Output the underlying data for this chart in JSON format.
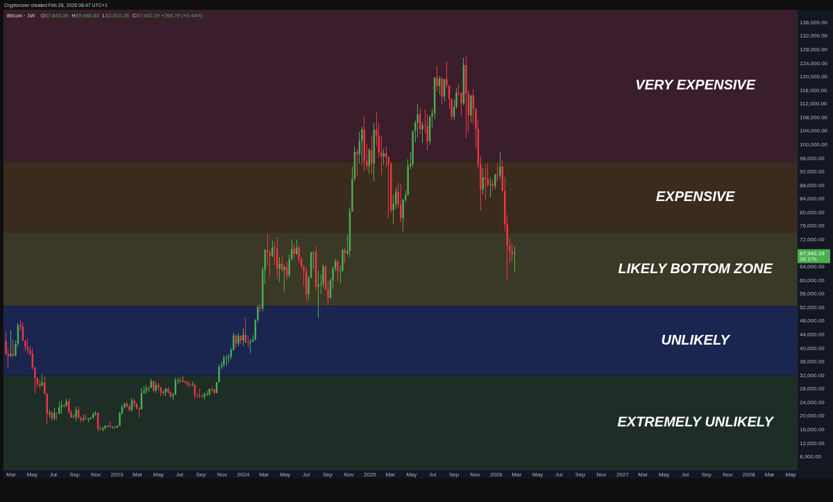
{
  "chart_data": {
    "type": "candlestick",
    "title": "Bitcoin · 1W",
    "subtitle": "O67,643.39 H69,988.83 L62,510.28 C67,942.19 +298.79 (+0.44%)",
    "annotations": [
      "Cryptorover created Feb 26, 2026 08:47 UTC+1",
      "67,942.19",
      "3d 17h"
    ],
    "x": [
      "2022-02-14",
      "2022-02-21",
      "2022-02-28",
      "2022-03-07",
      "2022-03-14",
      "2022-03-21",
      "2022-03-28",
      "2022-04-04",
      "2022-04-11",
      "2022-04-18",
      "2022-04-25",
      "2022-05-02",
      "2022-05-09",
      "2022-05-16",
      "2022-05-23",
      "2022-05-30",
      "2022-06-06",
      "2022-06-13",
      "2022-06-20",
      "2022-06-27",
      "2022-07-04",
      "2022-07-11",
      "2022-07-18",
      "2022-07-25",
      "2022-08-01",
      "2022-08-08",
      "2022-08-15",
      "2022-08-22",
      "2022-08-29",
      "2022-09-05",
      "2022-09-12",
      "2022-09-19",
      "2022-09-26",
      "2022-10-03",
      "2022-10-10",
      "2022-10-17",
      "2022-10-24",
      "2022-10-31",
      "2022-11-07",
      "2022-11-14",
      "2022-11-21",
      "2022-11-28",
      "2022-12-05",
      "2022-12-12",
      "2022-12-19",
      "2022-12-26",
      "2023-01-02",
      "2023-01-09",
      "2023-01-16",
      "2023-01-23",
      "2023-01-30",
      "2023-02-06",
      "2023-02-13",
      "2023-02-20",
      "2023-02-27",
      "2023-03-06",
      "2023-03-13",
      "2023-03-20",
      "2023-03-27",
      "2023-04-03",
      "2023-04-10",
      "2023-04-17",
      "2023-04-24",
      "2023-05-01",
      "2023-05-08",
      "2023-05-15",
      "2023-05-22",
      "2023-05-29",
      "2023-06-05",
      "2023-06-12",
      "2023-06-19",
      "2023-06-26",
      "2023-07-03",
      "2023-07-10",
      "2023-07-17",
      "2023-07-24",
      "2023-07-31",
      "2023-08-07",
      "2023-08-14",
      "2023-08-21",
      "2023-08-28",
      "2023-09-04",
      "2023-09-11",
      "2023-09-18",
      "2023-09-25",
      "2023-10-02",
      "2023-10-09",
      "2023-10-16",
      "2023-10-23",
      "2023-10-30",
      "2023-11-06",
      "2023-11-13",
      "2023-11-20",
      "2023-11-27",
      "2023-12-04",
      "2023-12-11",
      "2023-12-18",
      "2023-12-25",
      "2024-01-01",
      "2024-01-08",
      "2024-01-15",
      "2024-01-22",
      "2024-01-29",
      "2024-02-05",
      "2024-02-12",
      "2024-02-19",
      "2024-02-26",
      "2024-03-04",
      "2024-03-11",
      "2024-03-18",
      "2024-03-25",
      "2024-04-01",
      "2024-04-08",
      "2024-04-15",
      "2024-04-22",
      "2024-04-29",
      "2024-05-06",
      "2024-05-13",
      "2024-05-20",
      "2024-05-27",
      "2024-06-03",
      "2024-06-10",
      "2024-06-17",
      "2024-06-24",
      "2024-07-01",
      "2024-07-08",
      "2024-07-15",
      "2024-07-22",
      "2024-07-29",
      "2024-08-05",
      "2024-08-12",
      "2024-08-19",
      "2024-08-26",
      "2024-09-02",
      "2024-09-09",
      "2024-09-16",
      "2024-09-23",
      "2024-09-30",
      "2024-10-07",
      "2024-10-14",
      "2024-10-21",
      "2024-10-28",
      "2024-11-04",
      "2024-11-11",
      "2024-11-18",
      "2024-11-25",
      "2024-12-02",
      "2024-12-09",
      "2024-12-16",
      "2024-12-23",
      "2024-12-30",
      "2025-01-06",
      "2025-01-13",
      "2025-01-20",
      "2025-01-27",
      "2025-02-03",
      "2025-02-10",
      "2025-02-17",
      "2025-02-24",
      "2025-03-03",
      "2025-03-10",
      "2025-03-17",
      "2025-03-24",
      "2025-03-31",
      "2025-04-07",
      "2025-04-14",
      "2025-04-21",
      "2025-04-28",
      "2025-05-05",
      "2025-05-12",
      "2025-05-19",
      "2025-05-26",
      "2025-06-02",
      "2025-06-09",
      "2025-06-16",
      "2025-06-23",
      "2025-06-30",
      "2025-07-07",
      "2025-07-14",
      "2025-07-21",
      "2025-07-28",
      "2025-08-04",
      "2025-08-11",
      "2025-08-18",
      "2025-08-25",
      "2025-09-01",
      "2025-09-08",
      "2025-09-15",
      "2025-09-22",
      "2025-09-29",
      "2025-10-06",
      "2025-10-13",
      "2025-10-20",
      "2025-10-27",
      "2025-11-03",
      "2025-11-10",
      "2025-11-17",
      "2025-11-24",
      "2025-12-01",
      "2025-12-08",
      "2025-12-15",
      "2025-12-22",
      "2025-12-29",
      "2026-01-05",
      "2026-01-12",
      "2026-01-19",
      "2026-01-26",
      "2026-02-02",
      "2026-02-09",
      "2026-02-16",
      "2026-02-23"
    ],
    "ohlc": [
      [
        42100,
        44800,
        38000,
        38400
      ],
      [
        38400,
        39900,
        34300,
        37700
      ],
      [
        37700,
        45400,
        37500,
        38400
      ],
      [
        38400,
        42600,
        37200,
        37800
      ],
      [
        37800,
        42300,
        37600,
        41300
      ],
      [
        41300,
        47500,
        40500,
        46800
      ],
      [
        46800,
        48200,
        45200,
        46400
      ],
      [
        46400,
        47500,
        42100,
        42200
      ],
      [
        42200,
        42400,
        39200,
        40400
      ],
      [
        40400,
        43000,
        38500,
        39500
      ],
      [
        39500,
        40800,
        37700,
        38500
      ],
      [
        38500,
        40000,
        33700,
        34300
      ],
      [
        34300,
        34500,
        26700,
        31300
      ],
      [
        31300,
        31400,
        28600,
        29500
      ],
      [
        29500,
        30600,
        28000,
        29000
      ],
      [
        29000,
        32400,
        28900,
        29900
      ],
      [
        29900,
        31700,
        26500,
        26600
      ],
      [
        26600,
        26900,
        17600,
        20600
      ],
      [
        20600,
        21900,
        19600,
        21000
      ],
      [
        21000,
        21500,
        18600,
        19300
      ],
      [
        19300,
        22500,
        18800,
        20900
      ],
      [
        20900,
        21000,
        18900,
        20800
      ],
      [
        20800,
        24300,
        20700,
        22600
      ],
      [
        22600,
        24700,
        20700,
        23300
      ],
      [
        23300,
        23700,
        22400,
        23200
      ],
      [
        23200,
        25200,
        22700,
        24400
      ],
      [
        24400,
        25200,
        20800,
        21100
      ],
      [
        21100,
        22000,
        19500,
        19600
      ],
      [
        19600,
        20600,
        19500,
        19800
      ],
      [
        19800,
        22800,
        18500,
        21800
      ],
      [
        21800,
        22700,
        19300,
        19400
      ],
      [
        19400,
        20000,
        18100,
        18800
      ],
      [
        18800,
        20400,
        18500,
        19300
      ],
      [
        19300,
        20500,
        19000,
        19100
      ],
      [
        19100,
        19500,
        18200,
        19200
      ],
      [
        19200,
        19700,
        18900,
        19600
      ],
      [
        19600,
        21100,
        19200,
        20600
      ],
      [
        20600,
        21500,
        20100,
        20900
      ],
      [
        20900,
        21100,
        15600,
        16300
      ],
      [
        16300,
        17200,
        15800,
        16200
      ],
      [
        16200,
        16800,
        15500,
        16500
      ],
      [
        16500,
        17400,
        16000,
        17100
      ],
      [
        17100,
        17400,
        16700,
        17100
      ],
      [
        17100,
        18400,
        16500,
        16800
      ],
      [
        16800,
        17000,
        16300,
        16800
      ],
      [
        16800,
        17000,
        16300,
        16600
      ],
      [
        16600,
        17400,
        16500,
        17100
      ],
      [
        17100,
        21300,
        17100,
        20900
      ],
      [
        20900,
        23400,
        20400,
        22700
      ],
      [
        22700,
        23800,
        22300,
        23700
      ],
      [
        23700,
        24300,
        22500,
        22900
      ],
      [
        22900,
        23500,
        21400,
        21800
      ],
      [
        21800,
        25300,
        21400,
        24600
      ],
      [
        24600,
        25100,
        22700,
        23600
      ],
      [
        23600,
        23900,
        22000,
        22400
      ],
      [
        22400,
        22600,
        19600,
        22100
      ],
      [
        22100,
        28400,
        21900,
        26900
      ],
      [
        26900,
        28900,
        26600,
        27500
      ],
      [
        27500,
        29200,
        26500,
        28200
      ],
      [
        28200,
        28800,
        27200,
        28300
      ],
      [
        28300,
        31000,
        28300,
        30300
      ],
      [
        30300,
        30600,
        27100,
        27600
      ],
      [
        27600,
        30000,
        26900,
        29200
      ],
      [
        29200,
        29800,
        27700,
        28400
      ],
      [
        28400,
        28700,
        25800,
        26900
      ],
      [
        26900,
        27700,
        26100,
        27100
      ],
      [
        27100,
        28300,
        25900,
        28100
      ],
      [
        28100,
        28500,
        26600,
        27100
      ],
      [
        27100,
        27400,
        25400,
        25800
      ],
      [
        25800,
        26800,
        24800,
        26300
      ],
      [
        26300,
        31400,
        26300,
        30500
      ],
      [
        30500,
        31300,
        29500,
        30600
      ],
      [
        30600,
        31500,
        29700,
        30200
      ],
      [
        30200,
        31800,
        30000,
        30300
      ],
      [
        30300,
        30500,
        29500,
        30100
      ],
      [
        30100,
        30300,
        28900,
        29200
      ],
      [
        29200,
        30000,
        28600,
        29100
      ],
      [
        29100,
        30200,
        28700,
        29300
      ],
      [
        29300,
        29700,
        25200,
        26100
      ],
      [
        26100,
        26800,
        25400,
        26000
      ],
      [
        26000,
        28100,
        25300,
        25900
      ],
      [
        25900,
        26400,
        25400,
        25800
      ],
      [
        25800,
        27000,
        24900,
        26500
      ],
      [
        26500,
        27500,
        26000,
        26500
      ],
      [
        26500,
        28000,
        26000,
        28000
      ],
      [
        28000,
        28600,
        27200,
        27900
      ],
      [
        27900,
        28000,
        26500,
        26900
      ],
      [
        26900,
        30000,
        26800,
        30000
      ],
      [
        30000,
        35300,
        29900,
        34500
      ],
      [
        34500,
        36000,
        33900,
        35000
      ],
      [
        35000,
        38000,
        34500,
        37100
      ],
      [
        37100,
        38000,
        34800,
        37400
      ],
      [
        37400,
        38400,
        35600,
        37500
      ],
      [
        37500,
        40300,
        36700,
        39500
      ],
      [
        39500,
        44700,
        39300,
        43800
      ],
      [
        43800,
        44100,
        40200,
        41400
      ],
      [
        41400,
        44400,
        40600,
        43700
      ],
      [
        43700,
        43800,
        41300,
        42300
      ],
      [
        42300,
        45900,
        40800,
        44000
      ],
      [
        44000,
        49100,
        41500,
        41700
      ],
      [
        41700,
        43600,
        40300,
        41600
      ],
      [
        41600,
        42800,
        38600,
        42000
      ],
      [
        42000,
        43900,
        41800,
        42600
      ],
      [
        42600,
        48600,
        42300,
        48300
      ],
      [
        48300,
        52800,
        47700,
        52100
      ],
      [
        52100,
        53000,
        50500,
        51700
      ],
      [
        51700,
        64000,
        50900,
        63100
      ],
      [
        63100,
        69200,
        59000,
        69000
      ],
      [
        69000,
        73800,
        64500,
        68400
      ],
      [
        68400,
        68900,
        60800,
        67200
      ],
      [
        67200,
        71800,
        66900,
        69700
      ],
      [
        69700,
        71300,
        64500,
        69400
      ],
      [
        69400,
        72800,
        60700,
        63400
      ],
      [
        63400,
        66900,
        59600,
        64900
      ],
      [
        64900,
        67200,
        62400,
        63100
      ],
      [
        63100,
        64700,
        56600,
        63900
      ],
      [
        63900,
        65500,
        60200,
        61500
      ],
      [
        61500,
        67700,
        60800,
        66300
      ],
      [
        66300,
        72000,
        66000,
        69300
      ],
      [
        69300,
        70600,
        66600,
        67800
      ],
      [
        67800,
        72000,
        67600,
        69700
      ],
      [
        69700,
        70200,
        65100,
        66200
      ],
      [
        66200,
        67000,
        63400,
        64200
      ],
      [
        64200,
        64500,
        58400,
        62700
      ],
      [
        62700,
        63800,
        53500,
        55900
      ],
      [
        55900,
        61400,
        54300,
        60800
      ],
      [
        60800,
        68400,
        60600,
        68200
      ],
      [
        68200,
        68500,
        63500,
        68300
      ],
      [
        68300,
        70100,
        57100,
        58200
      ],
      [
        58200,
        62800,
        49000,
        58700
      ],
      [
        58700,
        61800,
        56100,
        59000
      ],
      [
        59000,
        65000,
        57900,
        64200
      ],
      [
        64200,
        64500,
        57200,
        57300
      ],
      [
        57300,
        59800,
        52600,
        54900
      ],
      [
        54900,
        60700,
        54600,
        60000
      ],
      [
        60000,
        64100,
        57500,
        63600
      ],
      [
        63600,
        66500,
        62700,
        65600
      ],
      [
        65600,
        65700,
        59800,
        62800
      ],
      [
        62800,
        64500,
        59000,
        62900
      ],
      [
        62900,
        69400,
        62500,
        69000
      ],
      [
        69000,
        69500,
        65100,
        68000
      ],
      [
        68000,
        73600,
        67500,
        68700
      ],
      [
        68700,
        81500,
        66800,
        80400
      ],
      [
        80400,
        93500,
        80200,
        89900
      ],
      [
        89900,
        99600,
        89400,
        97900
      ],
      [
        97900,
        98700,
        90800,
        97200
      ],
      [
        97200,
        103900,
        94500,
        101100
      ],
      [
        101100,
        105300,
        94200,
        104500
      ],
      [
        104500,
        108400,
        92100,
        95200
      ],
      [
        95200,
        100000,
        92500,
        93700
      ],
      [
        93700,
        99000,
        91500,
        98400
      ],
      [
        98400,
        102700,
        91200,
        94500
      ],
      [
        94500,
        106400,
        89300,
        104500
      ],
      [
        104500,
        109600,
        99500,
        102600
      ],
      [
        102600,
        106500,
        96100,
        97700
      ],
      [
        97700,
        102500,
        91200,
        96500
      ],
      [
        96500,
        98800,
        94100,
        97500
      ],
      [
        97500,
        99500,
        93400,
        96300
      ],
      [
        96300,
        96500,
        78300,
        94300
      ],
      [
        94300,
        95000,
        80000,
        80700
      ],
      [
        80700,
        85300,
        76600,
        82600
      ],
      [
        82600,
        87500,
        81100,
        86100
      ],
      [
        86100,
        88800,
        81600,
        82400
      ],
      [
        82400,
        88500,
        77200,
        78400
      ],
      [
        78400,
        84000,
        74500,
        83800
      ],
      [
        83800,
        86500,
        83000,
        85200
      ],
      [
        85200,
        95800,
        85100,
        93800
      ],
      [
        93800,
        97900,
        92800,
        94300
      ],
      [
        94300,
        104300,
        93400,
        104100
      ],
      [
        104100,
        107100,
        100700,
        106500
      ],
      [
        106500,
        112000,
        102000,
        109000
      ],
      [
        109000,
        110700,
        103100,
        104600
      ],
      [
        104600,
        106800,
        100400,
        105700
      ],
      [
        105700,
        110400,
        103400,
        105600
      ],
      [
        105600,
        109000,
        98200,
        101000
      ],
      [
        101000,
        108500,
        100000,
        108400
      ],
      [
        108400,
        110500,
        105100,
        109200
      ],
      [
        109200,
        119900,
        107500,
        119800
      ],
      [
        119800,
        123200,
        115700,
        117300
      ],
      [
        117300,
        120300,
        114700,
        119500
      ],
      [
        119500,
        119800,
        112000,
        114200
      ],
      [
        114200,
        119400,
        112700,
        119300
      ],
      [
        119300,
        124500,
        116800,
        117400
      ],
      [
        117400,
        117600,
        110600,
        113500
      ],
      [
        113500,
        113600,
        107300,
        108300
      ],
      [
        108300,
        113400,
        107300,
        111200
      ],
      [
        111200,
        116700,
        110600,
        115300
      ],
      [
        115300,
        117900,
        114400,
        115200
      ],
      [
        115200,
        115400,
        108600,
        112200
      ],
      [
        112200,
        125700,
        111600,
        123500
      ],
      [
        123500,
        126200,
        102000,
        115100
      ],
      [
        115100,
        116000,
        103500,
        108700
      ],
      [
        108700,
        114600,
        106600,
        114500
      ],
      [
        114500,
        116400,
        106300,
        110600
      ],
      [
        110600,
        110800,
        98900,
        104700
      ],
      [
        104700,
        107500,
        93000,
        94300
      ],
      [
        94300,
        96600,
        80600,
        86800
      ],
      [
        86800,
        93100,
        85300,
        90400
      ],
      [
        90400,
        94100,
        83800,
        90000
      ],
      [
        90000,
        94600,
        87600,
        88200
      ],
      [
        88200,
        90300,
        84500,
        88400
      ],
      [
        88400,
        89500,
        86500,
        87800
      ],
      [
        87800,
        91500,
        86900,
        91100
      ],
      [
        91100,
        94700,
        89300,
        90900
      ],
      [
        90900,
        97900,
        90000,
        93600
      ],
      [
        93600,
        95500,
        86200,
        86400
      ],
      [
        86400,
        90500,
        74500,
        76600
      ],
      [
        76600,
        79300,
        60000,
        70100
      ],
      [
        70100,
        72300,
        65100,
        68700
      ],
      [
        68700,
        70900,
        65600,
        67643.39
      ],
      [
        67643.39,
        69988.83,
        62510.28,
        67942.19
      ]
    ],
    "colors": [
      "#f23645",
      "#f23645",
      "#4caf50",
      "#f23645",
      "#4caf50",
      "#4caf50",
      "#f23645",
      "#f23645",
      "#f23645",
      "#f23645",
      "#f23645",
      "#f23645",
      "#f23645",
      "#f23645",
      "#f23645",
      "#4caf50",
      "#f23645",
      "#f23645",
      "#4caf50",
      "#f23645",
      "#4caf50",
      "#f23645",
      "#4caf50",
      "#4caf50",
      "#f23645",
      "#4caf50",
      "#f23645",
      "#f23645",
      "#4caf50",
      "#4caf50",
      "#f23645",
      "#f23645",
      "#4caf50",
      "#f23645",
      "#4caf50",
      "#4caf50",
      "#4caf50",
      "#4caf50",
      "#f23645",
      "#f23645",
      "#4caf50",
      "#4caf50",
      "#4caf50",
      "#f23645",
      "#4caf50",
      "#f23645",
      "#4caf50",
      "#4caf50",
      "#4caf50",
      "#4caf50",
      "#f23645",
      "#f23645",
      "#4caf50",
      "#f23645",
      "#f23645",
      "#f23645",
      "#4caf50",
      "#4caf50",
      "#4caf50",
      "#4caf50",
      "#4caf50",
      "#f23645",
      "#4caf50",
      "#f23645",
      "#f23645",
      "#4caf50",
      "#4caf50",
      "#f23645",
      "#f23645",
      "#4caf50",
      "#4caf50",
      "#4caf50",
      "#f23645",
      "#4caf50",
      "#f23645",
      "#f23645",
      "#f23645",
      "#4caf50",
      "#f23645",
      "#f23645",
      "#f23645",
      "#f23645",
      "#4caf50",
      "#4caf50",
      "#4caf50",
      "#f23645",
      "#f23645",
      "#4caf50",
      "#4caf50",
      "#4caf50",
      "#4caf50",
      "#4caf50",
      "#4caf50",
      "#4caf50",
      "#4caf50",
      "#f23645",
      "#4caf50",
      "#f23645",
      "#4caf50",
      "#f23645",
      "#f23645",
      "#4caf50",
      "#4caf50",
      "#4caf50",
      "#4caf50",
      "#f23645",
      "#4caf50",
      "#4caf50",
      "#f23645",
      "#f23645",
      "#4caf50",
      "#f23645",
      "#f23645",
      "#4caf50",
      "#f23645",
      "#4caf50",
      "#f23645",
      "#4caf50",
      "#4caf50",
      "#f23645",
      "#4caf50",
      "#f23645",
      "#f23645",
      "#f23645",
      "#f23645",
      "#4caf50",
      "#4caf50",
      "#4caf50",
      "#f23645",
      "#4caf50",
      "#4caf50",
      "#4caf50",
      "#f23645",
      "#f23645",
      "#4caf50",
      "#4caf50",
      "#4caf50",
      "#f23645",
      "#4caf50",
      "#4caf50",
      "#f23645",
      "#4caf50",
      "#4caf50",
      "#4caf50",
      "#4caf50",
      "#f23645",
      "#4caf50",
      "#4caf50",
      "#f23645",
      "#f23645",
      "#4caf50",
      "#f23645",
      "#4caf50",
      "#f23645",
      "#f23645",
      "#f23645",
      "#4caf50",
      "#f23645",
      "#f23645",
      "#f23645",
      "#4caf50",
      "#4caf50",
      "#f23645",
      "#f23645",
      "#4caf50",
      "#4caf50",
      "#4caf50",
      "#4caf50",
      "#4caf50",
      "#4caf50",
      "#4caf50",
      "#f23645",
      "#4caf50",
      "#f23645",
      "#f23645",
      "#4caf50",
      "#4caf50",
      "#4caf50",
      "#f23645",
      "#4caf50",
      "#f23645",
      "#4caf50",
      "#f23645",
      "#f23645",
      "#f23645",
      "#4caf50",
      "#4caf50",
      "#f23645",
      "#f23645",
      "#4caf50",
      "#f23645",
      "#f23645",
      "#4caf50",
      "#f23645",
      "#f23645",
      "#f23645",
      "#f23645",
      "#4caf50",
      "#f23645",
      "#f23645",
      "#4caf50",
      "#f23645",
      "#4caf50",
      "#f23645",
      "#4caf50",
      "#f23645",
      "#f23645",
      "#f23645",
      "#f23645",
      "#f23645",
      "#4caf50"
    ],
    "xlim": [
      "2022-02-07",
      "2028-05-19"
    ],
    "xticks": [
      {
        "value": "2022-03-01",
        "label": "Mar"
      },
      {
        "value": "2022-05-01",
        "label": "May"
      },
      {
        "value": "2022-07-01",
        "label": "Jul"
      },
      {
        "value": "2022-09-01",
        "label": "Sep"
      },
      {
        "value": "2022-11-01",
        "label": "Nov"
      },
      "2023",
      {
        "value": "2023-03-01",
        "label": "Mar"
      },
      {
        "value": "2023-05-01",
        "label": "May"
      },
      {
        "value": "2023-07-01",
        "label": "Jul"
      },
      {
        "value": "2023-09-01",
        "label": "Sep"
      },
      {
        "value": "2023-11-01",
        "label": "Nov"
      },
      "2024",
      {
        "value": "2024-03-01",
        "label": "Mar"
      },
      {
        "value": "2024-05-01",
        "label": "May"
      },
      {
        "value": "2024-07-01",
        "label": "Jul"
      },
      {
        "value": "2024-09-01",
        "label": "Sep"
      },
      {
        "value": "2024-11-01",
        "label": "Nov"
      },
      "2025",
      {
        "value": "2025-03-01",
        "label": "Mar"
      },
      {
        "value": "2025-05-01",
        "label": "May"
      },
      {
        "value": "2025-07-01",
        "label": "Jul"
      },
      {
        "value": "2025-09-01",
        "label": "Sep"
      },
      {
        "value": "2025-11-01",
        "label": "Nov"
      },
      "2026",
      {
        "value": "2026-03-01",
        "label": "Mar"
      },
      {
        "value": "2026-05-01",
        "label": "May"
      },
      {
        "value": "2026-07-01",
        "label": "Jul"
      },
      {
        "value": "2026-09-01",
        "label": "Sep"
      },
      {
        "value": "2026-11-01",
        "label": "Nov"
      },
      "2027",
      {
        "value": "2027-03-01",
        "label": "Mar"
      },
      {
        "value": "2027-05-01",
        "label": "May"
      },
      {
        "value": "2027-07-01",
        "label": "Jul"
      },
      {
        "value": "2027-09-01",
        "label": "Sep"
      },
      {
        "value": "2027-11-01",
        "label": "Nov"
      },
      "2028",
      {
        "value": "2028-03-01",
        "label": "Mar"
      },
      {
        "value": "2028-05-01",
        "label": "May"
      }
    ],
    "ylim": [
      4300,
      139800
    ],
    "yticks": [
      {
        "value": 8000,
        "label": "8,000.00"
      },
      {
        "value": 12000,
        "label": "12,000.00"
      },
      {
        "value": 16000,
        "label": "16,000.00"
      },
      {
        "value": 20000,
        "label": "20,000.00"
      },
      {
        "value": 24000,
        "label": "24,000.00"
      },
      {
        "value": 28000,
        "label": "28,000.00"
      },
      {
        "value": 32000,
        "label": "32,000.00"
      },
      {
        "value": 36000,
        "label": "36,000.00"
      },
      {
        "value": 40000,
        "label": "40,000.00"
      },
      {
        "value": 44000,
        "label": "44,000.00"
      },
      {
        "value": 48000,
        "label": "48,000.00"
      },
      {
        "value": 52000,
        "label": "52,000.00"
      },
      {
        "value": 56000,
        "label": "56,000.00"
      },
      {
        "value": 60000,
        "label": "60,000.00"
      },
      {
        "value": 64000,
        "label": "64,000.00"
      },
      {
        "value": 72000,
        "label": "72,000.00"
      },
      {
        "value": 76000,
        "label": "76,000.00"
      },
      {
        "value": 80000,
        "label": "80,000.00"
      },
      {
        "value": 84000,
        "label": "84,000.00"
      },
      {
        "value": 88000,
        "label": "88,000.00"
      },
      {
        "value": 92000,
        "label": "92,000.00"
      },
      {
        "value": 96000,
        "label": "96,000.00"
      },
      {
        "value": 100000,
        "label": "100,000.00"
      },
      {
        "value": 104000,
        "label": "104,000.00"
      },
      {
        "value": 108000,
        "label": "108,000.00"
      },
      {
        "value": 112000,
        "label": "112,000.00"
      },
      {
        "value": 116000,
        "label": "116,000.00"
      },
      {
        "value": 120000,
        "label": "120,000.00"
      },
      {
        "value": 124000,
        "label": "124,000.00"
      },
      {
        "value": 128000,
        "label": "128,000.00"
      },
      {
        "value": 132000,
        "label": "132,000.00"
      },
      {
        "value": 136000,
        "label": "136,000.00"
      }
    ],
    "bands": [
      {
        "axis": "y",
        "from": 95000,
        "to": 139800,
        "label": "VERY EXPENSIVE",
        "color": "#3a1e2b"
      },
      {
        "axis": "y",
        "from": 74000,
        "to": 95000,
        "label": "EXPENSIVE",
        "color": "#3a2b1f"
      },
      {
        "axis": "y",
        "from": 52500,
        "to": 74000,
        "label": "LIKELY BOTTOM ZONE",
        "color": "#3a3826"
      },
      {
        "axis": "y",
        "from": 32000,
        "to": 52500,
        "label": "UNLIKELY",
        "color": "#1a2550"
      },
      {
        "axis": "y",
        "from": 4300,
        "to": 32000,
        "label": "EXTREMELY UNLIKELY",
        "color": "#1e2e27"
      }
    ]
  }
}
